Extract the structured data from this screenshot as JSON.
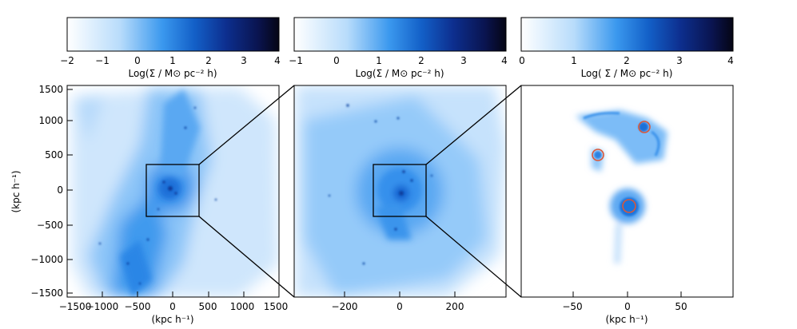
{
  "colors": {
    "deep": "#0a0a3a",
    "mid": "#1e7fe6",
    "light": "#d9ecfd",
    "marker": "#d9583a"
  },
  "panels": [
    {
      "colorbar": {
        "ticks": [
          "−2",
          "−1",
          "0",
          "1",
          "2",
          "3",
          "4"
        ],
        "label": "Log(Σ / M⊙ pc⁻² h)"
      },
      "x_ticks": [
        "−1500",
        "−1000",
        "−500",
        "0",
        "500",
        "1000",
        "1500"
      ],
      "y_ticks": [
        "1500",
        "1000",
        "500",
        "0",
        "−500",
        "−1000",
        "−1500"
      ],
      "x_label": "(kpc h⁻¹)",
      "y_label": "(kpc h⁻¹)"
    },
    {
      "colorbar": {
        "ticks": [
          "−1",
          "0",
          "1",
          "2",
          "3",
          "4"
        ],
        "label": "Log(Σ / M⊙ pc⁻² h)"
      },
      "x_ticks": [
        "−200",
        "0",
        "200"
      ]
    },
    {
      "colorbar": {
        "ticks": [
          "0",
          "1",
          "2",
          "3",
          "4"
        ],
        "label": "Log( Σ / M⊙ pc⁻² h)"
      },
      "x_ticks": [
        "−50",
        "0",
        "50"
      ],
      "x_label": "(kpc h⁻¹)"
    }
  ]
}
